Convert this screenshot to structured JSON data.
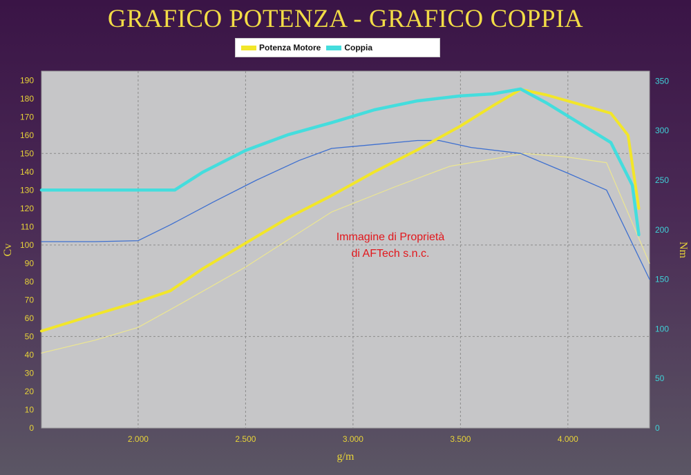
{
  "chart_data": {
    "type": "line",
    "title": "GRAFICO POTENZA - GRAFICO COPPIA",
    "xlabel": "g/m",
    "ylabel_left": "Cv",
    "ylabel_right": "Nm",
    "xlim": [
      1550,
      4380
    ],
    "ylim_left": [
      0,
      195
    ],
    "ylim_right": [
      0,
      360
    ],
    "x_ticks": [
      2000,
      2500,
      3000,
      3500,
      4000
    ],
    "x_tick_labels": [
      "2.000",
      "2.500",
      "3.000",
      "3.500",
      "4.000"
    ],
    "y_left_ticks": [
      0,
      10,
      20,
      30,
      40,
      50,
      60,
      70,
      80,
      90,
      100,
      110,
      120,
      130,
      140,
      150,
      160,
      170,
      180,
      190
    ],
    "y_right_ticks": [
      0,
      50,
      100,
      150,
      200,
      250,
      300,
      350
    ],
    "grid": true,
    "legend_position": "top-center",
    "series": [
      {
        "name": "Potenza Motore",
        "axis": "left",
        "color": "#f2e629",
        "x": [
          1550,
          1800,
          2000,
          2150,
          2300,
          2500,
          2700,
          2900,
          3100,
          3300,
          3500,
          3650,
          3780,
          3900,
          4050,
          4200,
          4280,
          4330
        ],
        "y": [
          53,
          62,
          69,
          75,
          87,
          101,
          115,
          127,
          140,
          152,
          165,
          176,
          185,
          182,
          177,
          172,
          160,
          120
        ]
      },
      {
        "name": "Coppia",
        "axis": "right",
        "color": "#44dddd",
        "x": [
          1550,
          1800,
          2000,
          2170,
          2300,
          2500,
          2700,
          2900,
          3100,
          3300,
          3500,
          3650,
          3780,
          3900,
          4050,
          4200,
          4300,
          4330
        ],
        "y": [
          240,
          240,
          240,
          240,
          258,
          280,
          296,
          308,
          321,
          330,
          335,
          337,
          342,
          328,
          308,
          288,
          245,
          195
        ]
      },
      {
        "axis": "left",
        "color": "#ece691",
        "x": [
          1550,
          1800,
          2000,
          2200,
          2500,
          2900,
          3200,
          3450,
          3800,
          4000,
          4180,
          4380
        ],
        "y": [
          41,
          48,
          55,
          68,
          88,
          118,
          132,
          143,
          150,
          148,
          145,
          90
        ]
      },
      {
        "axis": "right",
        "color": "#3d6fd0",
        "x": [
          1550,
          1800,
          2000,
          2150,
          2350,
          2550,
          2750,
          2900,
          3100,
          3300,
          3400,
          3550,
          3780,
          4000,
          4180,
          4380
        ],
        "y": [
          188,
          188,
          189,
          205,
          228,
          250,
          270,
          282,
          286,
          290,
          290,
          283,
          277,
          257,
          240,
          150
        ]
      }
    ],
    "annotation": [
      "Immagine di Proprietà",
      "di AFTech s.n.c."
    ]
  }
}
